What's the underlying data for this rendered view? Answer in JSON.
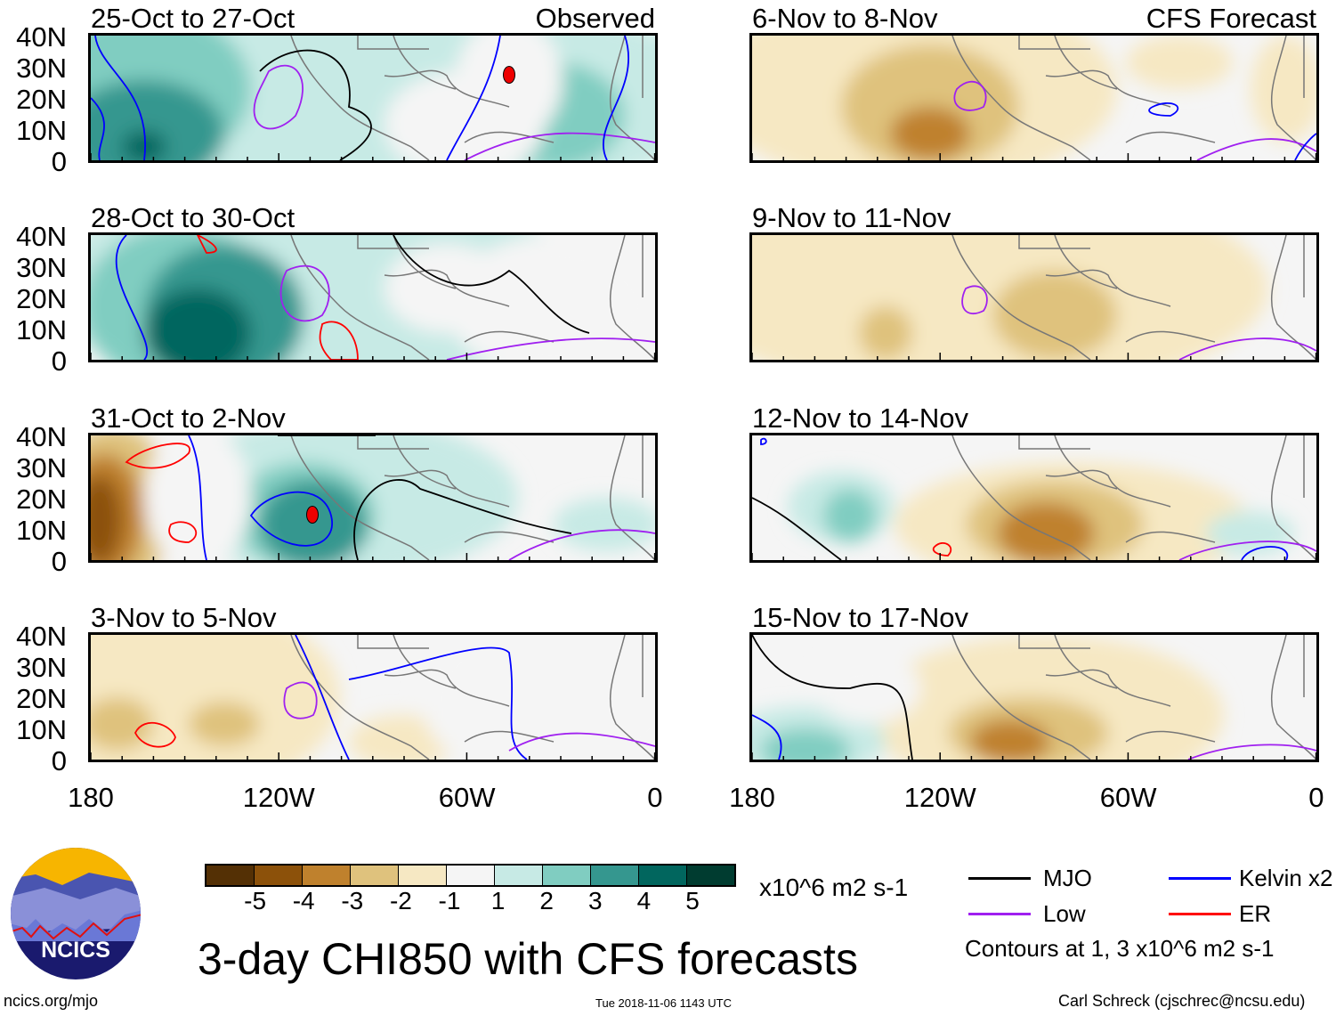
{
  "figure_title": "3-day CHI850 with CFS forecasts",
  "left_column_label": "Observed",
  "right_column_label": "CFS Forecast",
  "panels_left": [
    {
      "period": "25-Oct to 27-Oct"
    },
    {
      "period": "28-Oct to 30-Oct"
    },
    {
      "period": "31-Oct to 2-Nov"
    },
    {
      "period": "3-Nov to 5-Nov"
    }
  ],
  "panels_right": [
    {
      "period": "6-Nov to 8-Nov"
    },
    {
      "period": "9-Nov to 11-Nov"
    },
    {
      "period": "12-Nov to 14-Nov"
    },
    {
      "period": "15-Nov to 17-Nov"
    }
  ],
  "lat_labels": [
    "40N",
    "30N",
    "20N",
    "10N",
    "0"
  ],
  "lon_labels": [
    "180",
    "120W",
    "60W",
    "0"
  ],
  "colorbar": {
    "labels": [
      "-5",
      "-4",
      "-3",
      "-2",
      "-1",
      "1",
      "2",
      "3",
      "4",
      "5"
    ],
    "colors": [
      "#543005",
      "#8c510a",
      "#bf812d",
      "#dfc27d",
      "#f6e8c3",
      "#f5f5f5",
      "#c7eae5",
      "#80cdc1",
      "#35978f",
      "#01665e",
      "#003c30"
    ],
    "units": "x10^6 m2 s-1"
  },
  "legend": {
    "items": [
      {
        "label": "MJO",
        "color": "#000000"
      },
      {
        "label": "Kelvin x2",
        "color": "#0000ff"
      },
      {
        "label": "Low",
        "color": "#a020f0"
      },
      {
        "label": "ER",
        "color": "#ff0000"
      }
    ],
    "note": "Contours at 1, 3 x10^6 m2 s-1"
  },
  "logo_text": "NCICS",
  "footer": {
    "url": "ncics.org/mjo",
    "timestamp": "Tue 2018-11-06 1143 UTC",
    "credit": "Carl Schreck (cjschrec@ncsu.edu)"
  }
}
